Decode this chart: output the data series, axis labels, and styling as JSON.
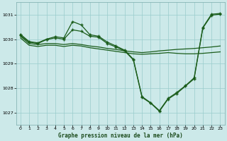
{
  "background_color": "#cce9e9",
  "grid_color": "#99cccc",
  "line_color": "#1a5c1a",
  "xlabel": "Graphe pression niveau de la mer (hPa)",
  "xlim": [
    -0.5,
    23.5
  ],
  "ylim": [
    1026.5,
    1031.5
  ],
  "yticks": [
    1027,
    1028,
    1029,
    1030,
    1031
  ],
  "xticks": [
    0,
    1,
    2,
    3,
    4,
    5,
    6,
    7,
    8,
    9,
    10,
    11,
    12,
    13,
    14,
    15,
    16,
    17,
    18,
    19,
    20,
    21,
    22,
    23
  ],
  "series1_x": [
    0,
    1,
    2,
    3,
    4,
    5,
    6,
    7,
    8,
    9,
    10,
    11,
    12,
    13,
    14,
    15,
    16,
    17,
    18,
    19,
    20,
    21,
    22,
    23
  ],
  "series1_y": [
    1030.2,
    1029.9,
    1029.85,
    1030.0,
    1030.1,
    1030.05,
    1030.72,
    1030.58,
    1030.18,
    1030.12,
    1029.88,
    1029.72,
    1029.55,
    1029.18,
    1027.65,
    1027.4,
    1027.08,
    1027.58,
    1027.82,
    1028.1,
    1028.42,
    1030.48,
    1031.02,
    1031.05
  ],
  "series2_x": [
    0,
    1,
    2,
    3,
    4,
    5,
    6,
    7,
    8,
    9,
    10,
    11,
    12,
    13,
    14,
    15,
    16,
    17,
    18,
    19,
    20,
    21,
    22,
    23
  ],
  "series2_y": [
    1030.15,
    1029.88,
    1029.82,
    1029.98,
    1030.05,
    1030.0,
    1030.38,
    1030.32,
    1030.12,
    1030.08,
    1029.82,
    1029.68,
    1029.52,
    1029.15,
    1027.62,
    1027.38,
    1027.05,
    1027.55,
    1027.78,
    1028.08,
    1028.38,
    1030.45,
    1030.98,
    1031.02
  ],
  "series3_x": [
    0,
    1,
    2,
    3,
    4,
    5,
    6,
    7,
    8,
    9,
    10,
    11,
    12,
    13,
    14,
    15,
    16,
    17,
    18,
    19,
    20,
    21,
    22,
    23
  ],
  "series3_y": [
    1030.12,
    1029.82,
    1029.78,
    1029.82,
    1029.82,
    1029.78,
    1029.82,
    1029.78,
    1029.72,
    1029.68,
    1029.62,
    1029.58,
    1029.52,
    1029.48,
    1029.45,
    1029.48,
    1029.52,
    1029.55,
    1029.58,
    1029.6,
    1029.62,
    1029.65,
    1029.68,
    1029.72
  ],
  "series4_x": [
    0,
    1,
    2,
    3,
    4,
    5,
    6,
    7,
    8,
    9,
    10,
    11,
    12,
    13,
    14,
    15,
    16,
    17,
    18,
    19,
    20,
    21,
    22,
    23
  ],
  "series4_y": [
    1030.05,
    1029.75,
    1029.7,
    1029.75,
    1029.75,
    1029.7,
    1029.75,
    1029.72,
    1029.65,
    1029.6,
    1029.55,
    1029.5,
    1029.45,
    1029.4,
    1029.38,
    1029.4,
    1029.42,
    1029.45,
    1029.42,
    1029.4,
    1029.4,
    1029.42,
    1029.45,
    1029.48
  ]
}
